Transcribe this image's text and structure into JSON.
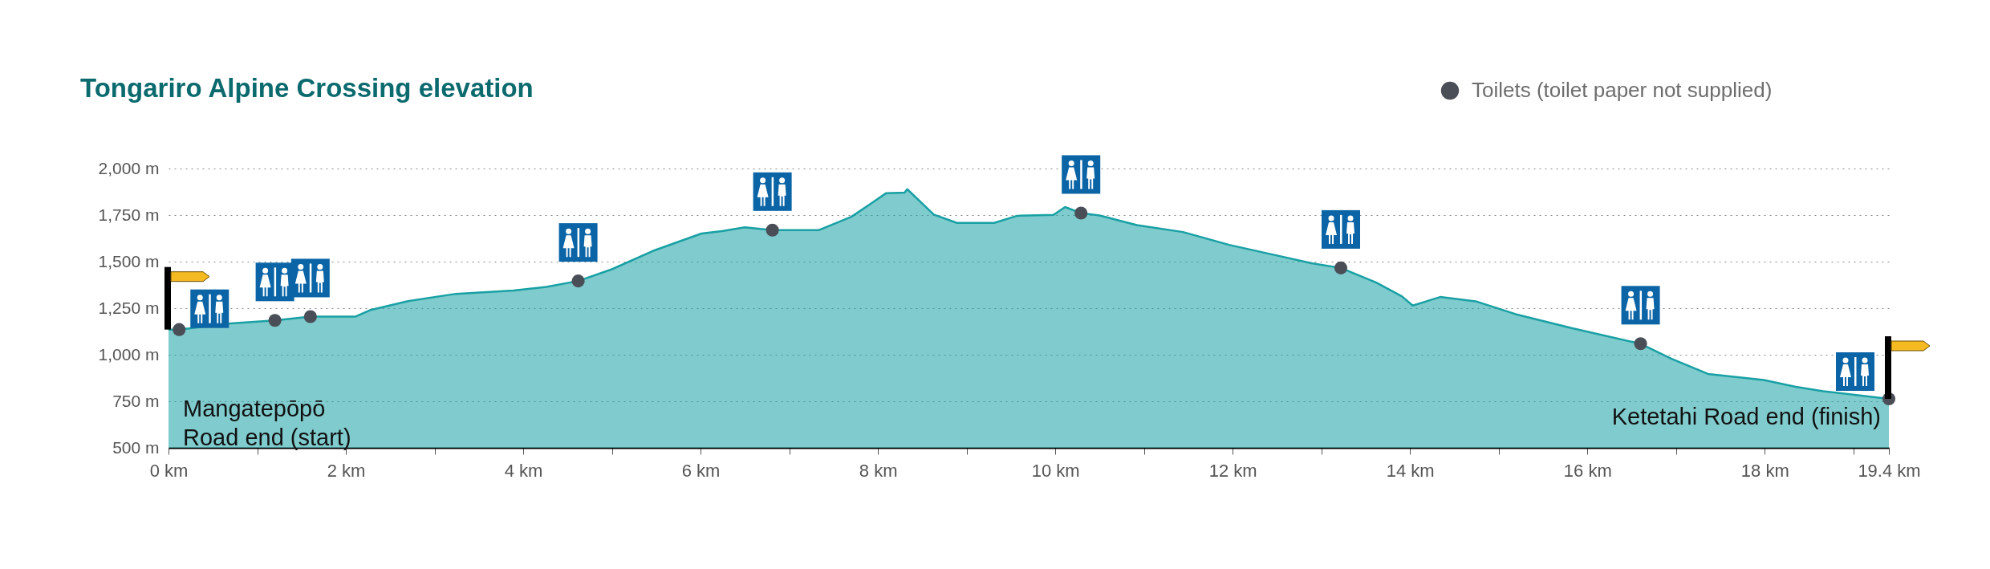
{
  "chart_data": {
    "type": "area",
    "title": "Tongariro Alpine Crossing elevation",
    "series": [
      {
        "color": "#18a0a4",
        "x": [
          0,
          0.12,
          0.7,
          1.2,
          1.6,
          2.11,
          2.27,
          2.69,
          3.24,
          3.89,
          4.26,
          4.62,
          5.0,
          5.46,
          6.01,
          6.24,
          6.5,
          6.81,
          7.33,
          7.7,
          7.91,
          8.09,
          8.3,
          8.33,
          8.63,
          8.89,
          9.31,
          9.57,
          9.98,
          10.11,
          10.29,
          10.5,
          10.92,
          11.44,
          11.96,
          12.48,
          12.89,
          13.22,
          13.62,
          13.91,
          14.03,
          14.34,
          14.74,
          15.19,
          15.82,
          16.6,
          16.95,
          17.36,
          17.99,
          18.35,
          18.66,
          19.4
        ],
        "values": [
          1135,
          1135,
          1168,
          1184,
          1205,
          1205,
          1239,
          1287,
          1327,
          1345,
          1364,
          1396,
          1459,
          1557,
          1651,
          1664,
          1684,
          1669,
          1669,
          1741,
          1808,
          1867,
          1871,
          1889,
          1753,
          1708,
          1708,
          1746,
          1751,
          1793,
          1761,
          1748,
          1696,
          1659,
          1590,
          1535,
          1491,
          1466,
          1387,
          1313,
          1264,
          1310,
          1287,
          1218,
          1143,
          1059,
          978,
          897,
          864,
          828,
          804,
          763
        ]
      },
      {
        "type": "scatter",
        "name": "Toilets (toilet paper not supplied)",
        "color": "#4a4e57",
        "marker": "circle",
        "x": [
          0.12,
          1.2,
          1.6,
          4.62,
          6.81,
          10.29,
          13.22,
          16.6,
          19.4
        ],
        "values": [
          1135,
          1184,
          1205,
          1396,
          1669,
          1761,
          1466,
          1059,
          763
        ]
      }
    ],
    "xlim": [
      0,
      19.4
    ],
    "xticks": [
      {
        "value": 0,
        "label": "0 km"
      },
      {
        "value": 1,
        "label": null
      },
      {
        "value": 2,
        "label": "2 km"
      },
      {
        "value": 3,
        "label": null
      },
      {
        "value": 4,
        "label": "4 km"
      },
      {
        "value": 5,
        "label": null
      },
      {
        "value": 6,
        "label": "6 km"
      },
      {
        "value": 7,
        "label": null
      },
      {
        "value": 8,
        "label": "8 km"
      },
      {
        "value": 9,
        "label": null
      },
      {
        "value": 10,
        "label": "10 km"
      },
      {
        "value": 11,
        "label": null
      },
      {
        "value": 12,
        "label": "12 km"
      },
      {
        "value": 13,
        "label": null
      },
      {
        "value": 14,
        "label": "14 km"
      },
      {
        "value": 15,
        "label": null
      },
      {
        "value": 16,
        "label": "16 km"
      },
      {
        "value": 17,
        "label": null
      },
      {
        "value": 18,
        "label": "18 km"
      },
      {
        "value": 19,
        "label": null
      },
      {
        "value": 19.4,
        "label": "19.4 km"
      }
    ],
    "ylim": [
      500,
      2000
    ],
    "yticks": [
      {
        "value": 500,
        "label": "500 m"
      },
      {
        "value": 750,
        "label": "750 m"
      },
      {
        "value": 1000,
        "label": "1,000 m"
      },
      {
        "value": 1250,
        "label": "1,250 m"
      },
      {
        "value": 1500,
        "label": "1,500 m"
      },
      {
        "value": 1750,
        "label": "1,750 m"
      },
      {
        "value": 2000,
        "label": "2,000 m"
      }
    ],
    "grid": "y",
    "legend": "top right",
    "annotations": [
      "Mangatepōpō\nRoad end (start)",
      "Ketetahi Road end (finish)"
    ]
  }
}
